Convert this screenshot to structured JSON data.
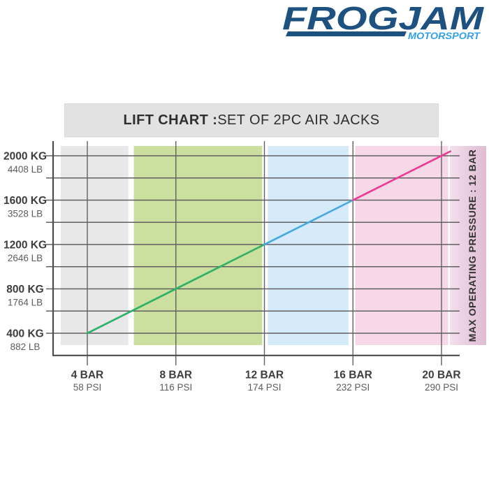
{
  "logo": {
    "brand": "FROGJAM",
    "subtitle": "MOTORSPORT",
    "brand_color": "#1d5180",
    "subtitle_color": "#34a1e6"
  },
  "title_bar": {
    "bold": "LIFT CHART :",
    "regular": " SET OF 2PC AIR JACKS",
    "bg": "#e2e2e2"
  },
  "chart_data": {
    "type": "line",
    "title": "LIFT CHART : SET OF 2PC AIR JACKS",
    "x_axis": {
      "unit_primary": "BAR",
      "unit_secondary": "PSI",
      "ticks": [
        {
          "label": "4 BAR",
          "sub": "58 PSI",
          "bar": 4
        },
        {
          "label": "8 BAR",
          "sub": "116 PSI",
          "bar": 8
        },
        {
          "label": "12 BAR",
          "sub": "174 PSI",
          "bar": 12
        },
        {
          "label": "16 BAR",
          "sub": "232 PSI",
          "bar": 16
        },
        {
          "label": "20 BAR",
          "sub": "290 PSI",
          "bar": 20
        }
      ]
    },
    "y_axis": {
      "unit_primary": "KG",
      "unit_secondary": "LB",
      "ticks": [
        {
          "label": "2000 KG",
          "sub": "4408 LB",
          "kg": 2000
        },
        {
          "label": "1600 KG",
          "sub": "3528 LB",
          "kg": 1600
        },
        {
          "label": "1200 KG",
          "sub": "2646 LB",
          "kg": 1200
        },
        {
          "label": "800 KG",
          "sub": "1764 LB",
          "kg": 800
        },
        {
          "label": "400 KG",
          "sub": "882 LB",
          "kg": 400
        }
      ],
      "minor_step_kg": 200
    },
    "series": [
      {
        "name": "lift-capacity",
        "points": [
          [
            4,
            400
          ],
          [
            8,
            800
          ],
          [
            12,
            1200
          ],
          [
            16,
            1600
          ],
          [
            20,
            2000
          ]
        ],
        "segments": [
          {
            "name": "segment-green",
            "from": [
              4,
              400
            ],
            "to": [
              12,
              1200
            ],
            "color": "#2fb068"
          },
          {
            "name": "segment-blue",
            "from": [
              12,
              1200
            ],
            "to": [
              16,
              1600
            ],
            "color": "#46a9dd"
          },
          {
            "name": "segment-magenta",
            "from": [
              16,
              1600
            ],
            "to": [
              20.4,
              2040
            ],
            "color": "#ec3c92"
          }
        ]
      }
    ],
    "bands": [
      {
        "name": "pressure-zone-gray",
        "color": "#e8e8e8",
        "from_bar": 2.8,
        "to_bar": 5.85
      },
      {
        "name": "pressure-zone-green",
        "color": "#cbdf9e",
        "from_bar": 6.1,
        "to_bar": 11.9
      },
      {
        "name": "pressure-zone-blue",
        "color": "#d6ebfa",
        "from_bar": 12.15,
        "to_bar": 15.8
      },
      {
        "name": "pressure-zone-pink",
        "color": "#f7d8e8",
        "from_bar": 16.1,
        "to_bar": 20.3
      }
    ],
    "annotation": {
      "text": "MAX OPERATING PRESSURE : 12 BAR",
      "band_colors": [
        "#f4e0ed",
        "#e9cde0",
        "#dfbdd3"
      ],
      "text_color": "#333333"
    },
    "grid": {
      "color": "#616161",
      "axis_color": "#4d4d4d",
      "on": true
    },
    "label_colors": {
      "primary": "#3d3d3d",
      "secondary": "#5d5d5d"
    },
    "xlim_bar": [
      2.45,
      20.8
    ],
    "ylim_kg": [
      200,
      2060
    ],
    "legend": "none"
  }
}
